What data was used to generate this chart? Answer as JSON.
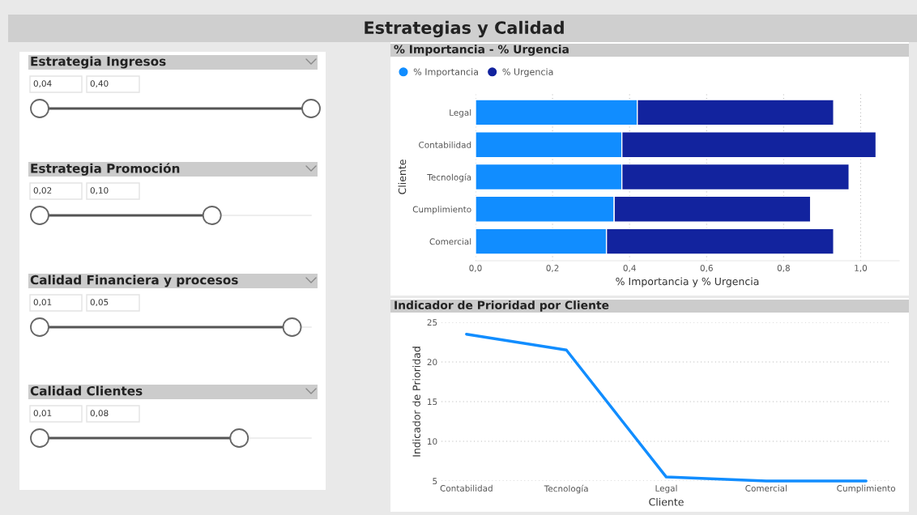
{
  "chart_data": [
    {
      "type": "other",
      "title": "Estrategias y Calidad"
    },
    {
      "type": "other",
      "title": "Estrategia Ingresos",
      "annotations": [
        "0,04",
        "0,40"
      ]
    },
    {
      "type": "other",
      "title": "Estrategia Promoción",
      "annotations": [
        "0,02",
        "0,10"
      ]
    },
    {
      "type": "other",
      "title": "Calidad Financiera y procesos",
      "annotations": [
        "0,01",
        "0,05"
      ]
    },
    {
      "type": "other",
      "title": "Calidad Clientes",
      "annotations": [
        "0,01",
        "0,08"
      ]
    },
    {
      "type": "bar",
      "title": "% Importancia - % Urgencia",
      "orientation": "horizontal",
      "stacked": true,
      "categories": [
        "Legal",
        "Contabilidad",
        "Tecnología",
        "Cumplimiento",
        "Comercial"
      ],
      "series": [
        {
          "name": "% Importancia",
          "color": "#118dff",
          "values": [
            0.42,
            0.38,
            0.38,
            0.36,
            0.34
          ]
        },
        {
          "name": "% Urgencia",
          "color": "#12239e",
          "values": [
            0.51,
            0.66,
            0.59,
            0.51,
            0.59
          ]
        }
      ],
      "xlabel": "% Importancia y % Urgencia",
      "ylabel": "Cliente",
      "xlim": [
        0,
        1.1
      ],
      "xticks": [
        {
          "value": 0,
          "label": "0,0"
        },
        {
          "value": 0.2,
          "label": "0,2"
        },
        {
          "value": 0.4,
          "label": "0,4"
        },
        {
          "value": 0.6,
          "label": "0,6"
        },
        {
          "value": 0.8,
          "label": "0,8"
        },
        {
          "value": 1.0,
          "label": "1,0"
        }
      ],
      "grid": "x",
      "legend": "top left"
    },
    {
      "type": "line",
      "title": "Indicador de Prioridad por Cliente",
      "categories": [
        "Contabilidad",
        "Tecnología",
        "Legal",
        "Comercial",
        "Cumplimiento"
      ],
      "series": [
        {
          "color": "#118dff",
          "values": [
            23.5,
            21.5,
            5.5,
            5,
            5
          ]
        }
      ],
      "xlabel": "Cliente",
      "ylabel": "Indicador de Prioridad",
      "ylim": [
        5,
        25
      ],
      "yticks": [
        5,
        10,
        15,
        20,
        25
      ],
      "grid": "y",
      "marker": "none",
      "line_style": "solid"
    }
  ]
}
